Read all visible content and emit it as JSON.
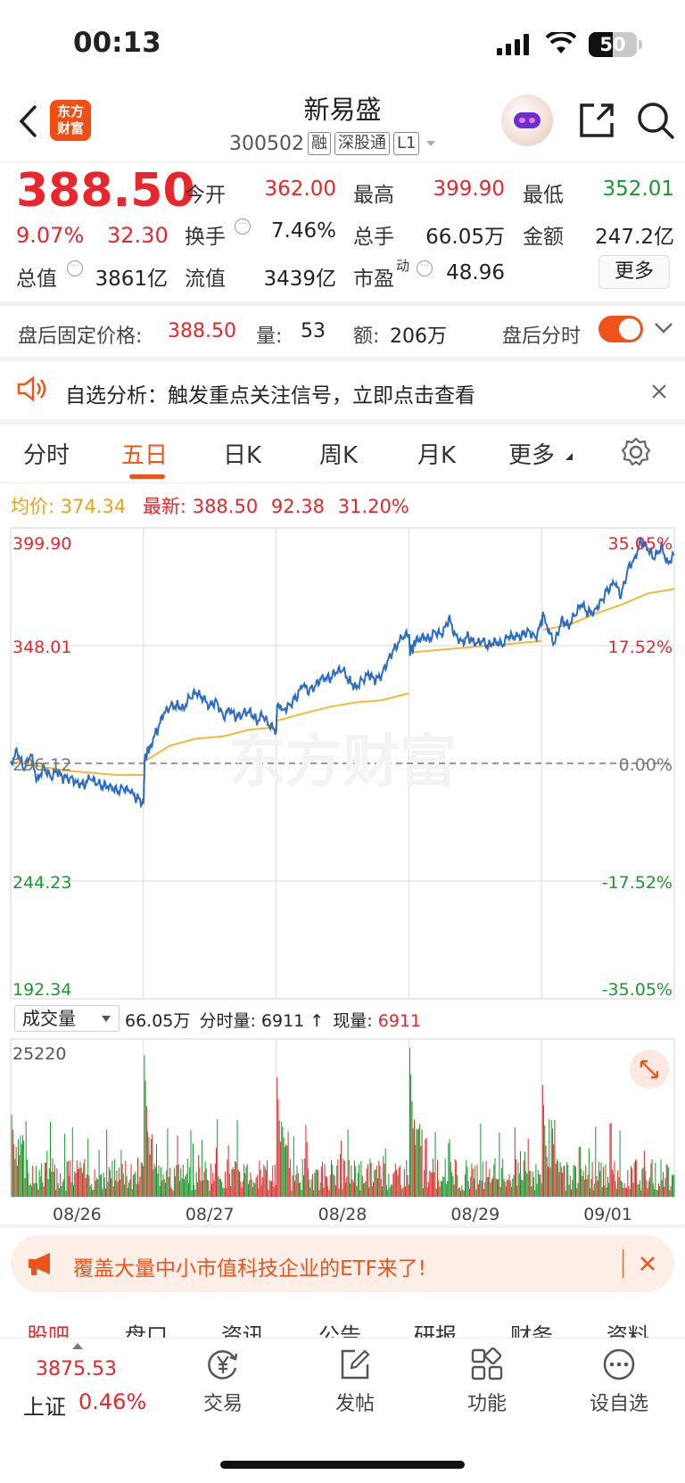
{
  "status": {
    "time": "00:13",
    "battery": "50",
    "battery_level": 0.5
  },
  "header": {
    "logo_line1": "东方",
    "logo_line2": "财富",
    "stock_name": "新易盛",
    "stock_code": "300502",
    "tags": [
      "融",
      "深股通",
      "L1"
    ]
  },
  "quote": {
    "price": "388.50",
    "change_pct": "9.07%",
    "change": "32.30",
    "open_label": "今开",
    "open": "362.00",
    "high_label": "最高",
    "high": "399.90",
    "low_label": "最低",
    "low": "352.01",
    "turnover_label": "换手",
    "turnover": "7.46%",
    "volume_label": "总手",
    "volume": "66.05万",
    "amount_label": "金额",
    "amount": "247.2亿",
    "mktcap_label": "总值",
    "mktcap": "3861亿",
    "float_label": "流值",
    "float": "3439亿",
    "pe_label": "市盈",
    "pe_sup": "动",
    "pe": "48.96",
    "more_label": "更多"
  },
  "after_hours": {
    "price_label": "盘后固定价格:",
    "price": "388.50",
    "vol_label": "量:",
    "vol": "53",
    "amt_label": "额:",
    "amt": "206万",
    "timeshare_label": "盘后分时",
    "timeshare_on": true
  },
  "notice": {
    "text": "自选分析：触发重点关注信号，立即点击查看"
  },
  "tabs": [
    "分时",
    "五日",
    "日K",
    "周K",
    "月K",
    "更多"
  ],
  "active_tab": "五日",
  "chart_header": {
    "avg_label": "均价:",
    "avg": "374.34",
    "latest_label": "最新:",
    "latest": "388.50",
    "change": "92.38",
    "change_pct": "31.20%"
  },
  "volume_bar": {
    "selector": "成交量",
    "total": "66.05万",
    "time_vol_label": "分时量:",
    "time_vol": "6911",
    "arrow": "↑",
    "current_label": "现量:",
    "current": "6911"
  },
  "chart_data": {
    "type": "line",
    "price_axis": {
      "left_ticks": [
        "399.90",
        "348.01",
        "296.12",
        "244.23",
        "192.34"
      ],
      "right_ticks": [
        "35.05%",
        "17.52%",
        "0.00%",
        "-17.52%",
        "-35.05%"
      ],
      "ylim": [
        192.34,
        399.9
      ],
      "base": 296.12
    },
    "x_labels": [
      "08/26",
      "08/27",
      "08/28",
      "08/29",
      "09/01"
    ],
    "series": [],
    "price_path": [
      [
        0,
        297
      ],
      [
        5,
        301
      ],
      [
        10,
        293
      ],
      [
        15,
        300
      ],
      [
        20,
        289
      ],
      [
        25,
        295
      ],
      [
        30,
        290
      ],
      [
        35,
        292
      ],
      [
        40,
        289
      ],
      [
        45,
        290
      ],
      [
        50,
        288
      ],
      [
        55,
        287
      ],
      [
        60,
        289
      ],
      [
        65,
        287
      ],
      [
        70,
        286
      ],
      [
        75,
        287
      ],
      [
        80,
        284
      ],
      [
        85,
        285
      ],
      [
        90,
        283
      ],
      [
        95,
        281
      ],
      [
        100,
        279
      ],
      [
        101,
        298
      ],
      [
        105,
        304
      ],
      [
        110,
        310
      ],
      [
        115,
        317
      ],
      [
        120,
        321
      ],
      [
        125,
        322
      ],
      [
        130,
        321
      ],
      [
        135,
        325
      ],
      [
        140,
        327
      ],
      [
        145,
        324
      ],
      [
        150,
        322
      ],
      [
        155,
        324
      ],
      [
        160,
        317
      ],
      [
        165,
        319
      ],
      [
        170,
        316
      ],
      [
        175,
        318
      ],
      [
        180,
        320
      ],
      [
        185,
        315
      ],
      [
        190,
        317
      ],
      [
        195,
        312
      ],
      [
        200,
        311
      ],
      [
        201,
        322
      ],
      [
        205,
        320
      ],
      [
        210,
        322
      ],
      [
        215,
        325
      ],
      [
        220,
        330
      ],
      [
        225,
        328
      ],
      [
        230,
        331
      ],
      [
        235,
        335
      ],
      [
        240,
        333
      ],
      [
        245,
        336
      ],
      [
        250,
        337
      ],
      [
        255,
        333
      ],
      [
        260,
        330
      ],
      [
        265,
        333
      ],
      [
        270,
        335
      ],
      [
        275,
        332
      ],
      [
        280,
        336
      ],
      [
        285,
        343
      ],
      [
        290,
        348
      ],
      [
        295,
        351
      ],
      [
        300,
        353
      ],
      [
        301,
        345
      ],
      [
        305,
        349
      ],
      [
        310,
        353
      ],
      [
        315,
        351
      ],
      [
        320,
        354
      ],
      [
        325,
        352
      ],
      [
        330,
        360
      ],
      [
        335,
        353
      ],
      [
        340,
        350
      ],
      [
        345,
        352
      ],
      [
        350,
        348
      ],
      [
        355,
        350
      ],
      [
        360,
        348
      ],
      [
        365,
        351
      ],
      [
        370,
        348
      ],
      [
        375,
        352
      ],
      [
        380,
        351
      ],
      [
        385,
        353
      ],
      [
        390,
        355
      ],
      [
        395,
        352
      ],
      [
        400,
        357
      ],
      [
        401,
        363
      ],
      [
        405,
        354
      ],
      [
        410,
        349
      ],
      [
        415,
        360
      ],
      [
        420,
        357
      ],
      [
        425,
        361
      ],
      [
        430,
        366
      ],
      [
        435,
        362
      ],
      [
        440,
        364
      ],
      [
        445,
        368
      ],
      [
        450,
        373
      ],
      [
        455,
        375
      ],
      [
        460,
        370
      ],
      [
        465,
        382
      ],
      [
        470,
        387
      ],
      [
        475,
        394
      ],
      [
        480,
        390
      ],
      [
        485,
        386
      ],
      [
        490,
        392
      ],
      [
        495,
        385
      ],
      [
        500,
        388
      ]
    ],
    "avg_path": [
      [
        0,
        297
      ],
      [
        20,
        295
      ],
      [
        40,
        293
      ],
      [
        60,
        292
      ],
      [
        80,
        291
      ],
      [
        100,
        291
      ],
      [
        101,
        297
      ],
      [
        120,
        304
      ],
      [
        140,
        307
      ],
      [
        160,
        308
      ],
      [
        180,
        311
      ],
      [
        200,
        312
      ],
      [
        201,
        315
      ],
      [
        220,
        318
      ],
      [
        240,
        321
      ],
      [
        260,
        323
      ],
      [
        280,
        324
      ],
      [
        300,
        327
      ],
      [
        301,
        345
      ],
      [
        320,
        346
      ],
      [
        340,
        347
      ],
      [
        360,
        348
      ],
      [
        380,
        349
      ],
      [
        400,
        350
      ],
      [
        401,
        355
      ],
      [
        420,
        357
      ],
      [
        440,
        362
      ],
      [
        460,
        366
      ],
      [
        480,
        371
      ],
      [
        500,
        373
      ]
    ],
    "volume_max": "25220"
  },
  "banner": {
    "text": "覆盖大量中小市值科技企业的ETF来了!"
  },
  "bottom_tabs": [
    "股吧",
    "盘口",
    "资讯",
    "公告",
    "研报",
    "财务",
    "资料"
  ],
  "bottom_nav": {
    "index_value": "3875.53",
    "index_name": "上证",
    "index_change": "0.46%",
    "items": [
      "交易",
      "发帖",
      "功能",
      "设自选"
    ]
  },
  "colors": {
    "accent": "#f0531a",
    "up": "#e8262b",
    "down": "#1a9a2e",
    "price_line": "#2b6cc4",
    "avg_line": "#f5b93a"
  }
}
